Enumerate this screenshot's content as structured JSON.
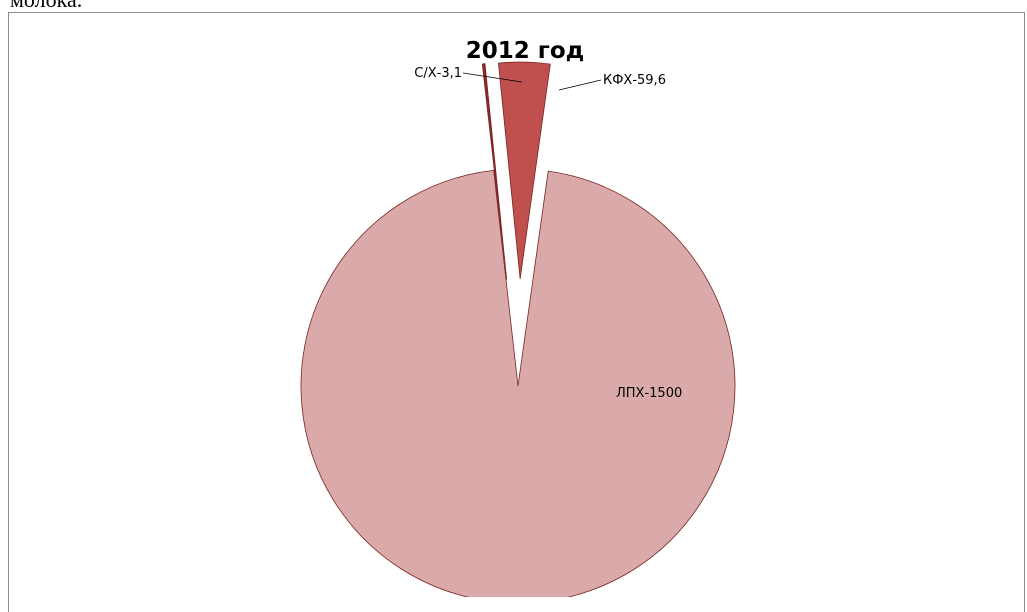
{
  "document": {
    "text_above": "молока."
  },
  "chart_data": {
    "type": "pie",
    "title": "2012 год",
    "slices": [
      {
        "label": "ЛПХ-1500",
        "category": "ЛПХ",
        "value": 1500,
        "color": "#d9aaa9",
        "exploded": false
      },
      {
        "label": "С/Х-3,1",
        "category": "С/Х",
        "value": 3.1,
        "color": "#8c2a2a",
        "exploded": true
      },
      {
        "label": "КФХ-59,6",
        "category": "КФХ",
        "value": 59.6,
        "color": "#c0504d",
        "exploded": true
      }
    ],
    "legend": "none",
    "data_labels": "category-value"
  }
}
